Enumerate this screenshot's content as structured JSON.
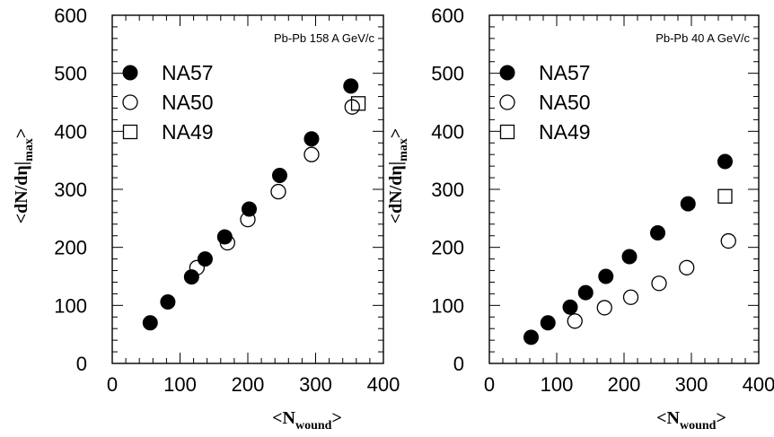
{
  "chart_data": [
    {
      "type": "scatter",
      "annotation": "Pb-Pb 158 A GeV/c",
      "xlabel": {
        "main": "<N",
        "sub": "wound",
        "close": ">"
      },
      "ylabel": {
        "main": "<dN/dη|",
        "sub": "max",
        "close": ">"
      },
      "xlim": [
        0,
        400
      ],
      "ylim": [
        0,
        600
      ],
      "xticks": [
        "0",
        "100",
        "200",
        "300",
        "400"
      ],
      "yticks": [
        "0",
        "100",
        "200",
        "300",
        "400",
        "500",
        "600"
      ],
      "legend_position": "upper-left",
      "series": [
        {
          "name": "NA57",
          "marker": "filled-circle",
          "points": [
            [
              56,
              70
            ],
            [
              82,
              106
            ],
            [
              117,
              149
            ],
            [
              137,
              180
            ],
            [
              166,
              218
            ],
            [
              202,
              266
            ],
            [
              247,
              324
            ],
            [
              294,
              387
            ],
            [
              352,
              478
            ]
          ]
        },
        {
          "name": "NA50",
          "marker": "open-circle",
          "points": [
            [
              125,
              165
            ],
            [
              170,
              208
            ],
            [
              200,
              248
            ],
            [
              245,
              296
            ],
            [
              294,
              360
            ],
            [
              354,
              442
            ]
          ]
        },
        {
          "name": "NA49",
          "marker": "open-square",
          "points": [
            [
              363,
              448
            ]
          ]
        }
      ]
    },
    {
      "type": "scatter",
      "annotation": "Pb-Pb 40 A GeV/c",
      "xlabel": {
        "main": "<N",
        "sub": "wound",
        "close": ">"
      },
      "ylabel": {
        "main": "<dN/dη|",
        "sub": "max",
        "close": ">"
      },
      "xlim": [
        0,
        400
      ],
      "ylim": [
        0,
        600
      ],
      "xticks": [
        "0",
        "100",
        "200",
        "300",
        "400"
      ],
      "yticks": [
        "0",
        "100",
        "200",
        "300",
        "400",
        "500",
        "600"
      ],
      "legend_position": "upper-left",
      "series": [
        {
          "name": "NA57",
          "marker": "filled-circle",
          "points": [
            [
              62,
              45
            ],
            [
              87,
              70
            ],
            [
              120,
              97
            ],
            [
              143,
              122
            ],
            [
              173,
              150
            ],
            [
              208,
              184
            ],
            [
              250,
              225
            ],
            [
              295,
              275
            ],
            [
              350,
              348
            ]
          ]
        },
        {
          "name": "NA50",
          "marker": "open-circle",
          "points": [
            [
              127,
              73
            ],
            [
              171,
              96
            ],
            [
              210,
              114
            ],
            [
              252,
              138
            ],
            [
              293,
              165
            ],
            [
              355,
              211
            ]
          ]
        },
        {
          "name": "NA49",
          "marker": "open-square",
          "points": [
            [
              350,
              288
            ]
          ]
        }
      ]
    }
  ]
}
